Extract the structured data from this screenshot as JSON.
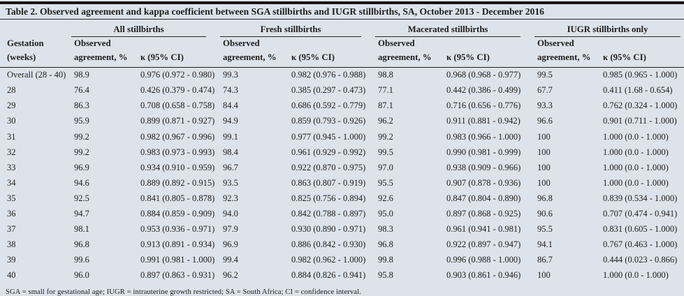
{
  "page": {
    "background_color": "#dce3eb",
    "text_color": "#1f1d1b",
    "rule_color": "#22201e"
  },
  "title": "Table 2. Observed agreement and kappa coefficient between SGA stillbirths and IUGR stillbirths, SA, October 2013 - December 2016",
  "table": {
    "group_headers": [
      "All stillbirths",
      "Fresh stillbirths",
      "Macerated stillbirths",
      "IUGR stillbirths only"
    ],
    "column_headers": {
      "gestation_line1": "Gestation",
      "gestation_line2": "(weeks)",
      "observed_line1": "Observed",
      "observed_line2": "agreement, %",
      "kappa": "κ (95% CI)"
    },
    "rows": [
      [
        "Overall (28 - 40)",
        "98.9",
        "0.976 (0.972 - 0.980)",
        "99.3",
        "0.982 (0.976 - 0.988)",
        "98.8",
        "0.968 (0.968 - 0.977)",
        "99.5",
        "0.985 (0.965 - 1.000)"
      ],
      [
        "28",
        "76.4",
        "0.426 (0.379 - 0.474)",
        "74.3",
        "0.385 (0.297 - 0.473)",
        "77.1",
        "0.442 (0.386 - 0.499)",
        "67.7",
        "0.411 (1.68 - 0.654)"
      ],
      [
        "29",
        "86.3",
        "0.708 (0.658 - 0.758)",
        "84.4",
        "0.686 (0.592 - 0.779)",
        "87.1",
        "0.716 (0.656 - 0.776)",
        "93.3",
        "0.762 (0.324 - 1.000)"
      ],
      [
        "30",
        "95.9",
        "0.899 (0.871 - 0.927)",
        "94.9",
        "0.859 (0.793 - 0.926)",
        "96.2",
        "0.911 (0.881 - 0.942)",
        "96.6",
        "0.901 (0.711 - 1.000)"
      ],
      [
        "31",
        "99.2",
        "0.982 (0.967 - 0.996)",
        "99.1",
        "0.977 (0.945 - 1.000)",
        "99.2",
        "0.983 (0.966 - 1.000)",
        "100",
        "1.000 (0.0 - 1.000)"
      ],
      [
        "32",
        "99.2",
        "0.983 (0.973 - 0.993)",
        "98.4",
        "0.961 (0.929 - 0.992)",
        "99.5",
        "0.990 (0.981 - 0.999)",
        "100",
        "1.000 (0.0 - 1.000)"
      ],
      [
        "33",
        "96.9",
        "0.934 (0.910 - 0.959)",
        "96.7",
        "0.922 (0.870 - 0.975)",
        "97.0",
        "0.938 (0.909 - 0.966)",
        "100",
        "1.000 (0.0 - 1.000)"
      ],
      [
        "34",
        "94.6",
        "0.889 (0.892 - 0.915)",
        "93.5",
        "0.863 (0.807 - 0.919)",
        "95.5",
        "0.907 (0.878 - 0.936)",
        "100",
        "1.000 (0.0 - 1.000)"
      ],
      [
        "35",
        "92.5",
        "0.841 (0.805 - 0.878)",
        "92.3",
        "0.825 (0.756 - 0.894)",
        "92.6",
        "0.847 (0.804 - 0.890)",
        "96.8",
        "0.839 (0.534 - 1.000)"
      ],
      [
        "36",
        "94.7",
        "0.884 (0.859 - 0.909)",
        "94.0",
        "0.842 (0.788 - 0.897)",
        "95.0",
        "0.897 (0.868 - 0.925)",
        "90.6",
        "0.707 (0.474 - 0.941)"
      ],
      [
        "37",
        "98.1",
        "0.953 (0.936 - 0.971)",
        "97.9",
        "0.930 (0.890 - 0.971)",
        "98.3",
        "0.961 (0.941 - 0.981)",
        "95.5",
        "0.831 (0.605 - 1.000)"
      ],
      [
        "38",
        "96.8",
        "0.913 (0.891 - 0.934)",
        "96.9",
        "0.886 (0.842 - 0.930)",
        "96.8",
        "0.922 (0.897 - 0.947)",
        "94.1",
        "0.767 (0.463 - 1.000)"
      ],
      [
        "39",
        "99.6",
        "0.991 (0.981 - 1.000)",
        "99.4",
        "0.982 (0.962 - 1.000)",
        "99.8",
        "0.996 (0.988 - 1.000)",
        "86.7",
        "0.444 (0.023 - 0.866)"
      ],
      [
        "40",
        "96.0",
        "0.897 (0.863 - 0.931)",
        "96.2",
        "0.884 (0.826 - 0.941)",
        "95.8",
        "0.903 (0.861 - 0.946)",
        "100",
        "1.000 (0.0 - 1.000)"
      ]
    ]
  },
  "footnote": "SGA = small for gestational age; IUGR = intrauterine growth restricted; SA = South Africa; CI = confidence interval."
}
